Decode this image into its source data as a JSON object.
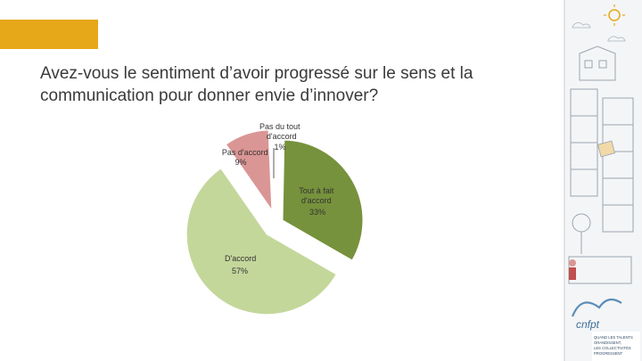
{
  "header": {
    "accent_color": "#E6A818"
  },
  "slide": {
    "title_line1": "Avez-vous le sentiment d’avoir progressé sur le sens et la",
    "title_line2": "communication pour donner envie d’innover?"
  },
  "chart_data": {
    "type": "pie",
    "slices": [
      {
        "label_line1": "Tout à fait",
        "label_line2": "d'accord",
        "value": 33,
        "value_label": "33%",
        "color": "#76923C"
      },
      {
        "label_line1": "D'accord",
        "label_line2": "",
        "value": 57,
        "value_label": "57%",
        "color": "#C4D79B"
      },
      {
        "label_line1": "Pas d'accord",
        "label_line2": "",
        "value": 9,
        "value_label": "9%",
        "color": "#DA9694"
      },
      {
        "label_line1": "Pas du tout",
        "label_line2": "d'accord",
        "value": 1,
        "value_label": "1%",
        "color": "#FFFFFF"
      }
    ],
    "title": "",
    "legend": "none"
  },
  "side_panel": {
    "footer_line1": "QUAND LES TALENTS",
    "footer_line2": "GRANDISSENT,",
    "footer_line3": "LES COLLECTIVITÉS",
    "footer_line4": "PROGRESSENT",
    "logo_text": "cnfpt",
    "accent_color": "#5B8DB8"
  }
}
